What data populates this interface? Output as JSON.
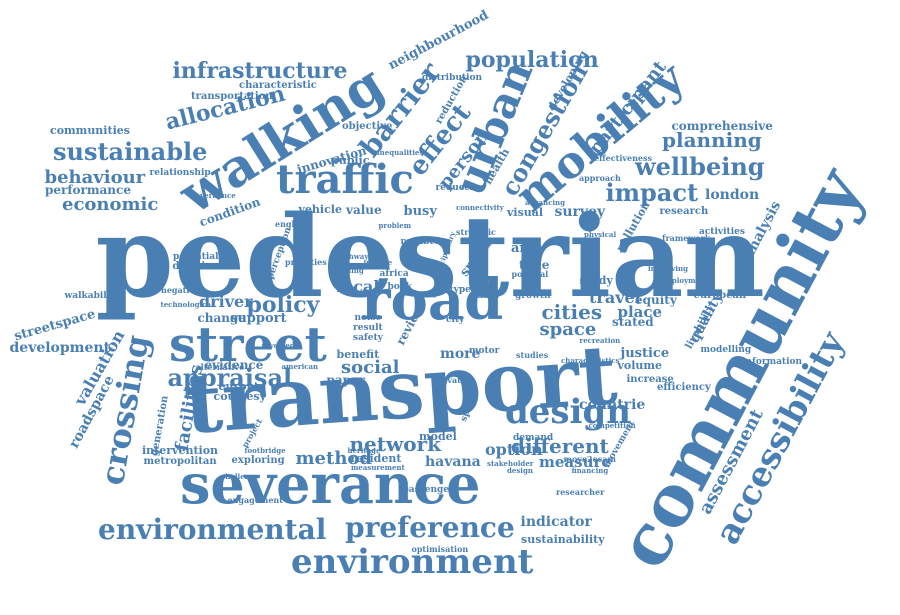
{
  "accent_color": "#4a7fb3",
  "words": [
    {
      "text": "pedestrian"
    },
    {
      "text": "community"
    },
    {
      "text": "transport"
    },
    {
      "text": "severance"
    },
    {
      "text": "road"
    },
    {
      "text": "walking"
    },
    {
      "text": "street"
    },
    {
      "text": "traffic"
    },
    {
      "text": "mobility"
    },
    {
      "text": "urban"
    },
    {
      "text": "accessibility"
    },
    {
      "text": "environment"
    },
    {
      "text": "environmental"
    },
    {
      "text": "preference"
    },
    {
      "text": "design"
    },
    {
      "text": "crossing"
    },
    {
      "text": "barrier"
    },
    {
      "text": "congestion"
    },
    {
      "text": "effect"
    },
    {
      "text": "infrastructure"
    },
    {
      "text": "population"
    },
    {
      "text": "sustainable"
    },
    {
      "text": "wellbeing"
    },
    {
      "text": "impact"
    },
    {
      "text": "planning"
    },
    {
      "text": "allocation"
    },
    {
      "text": "appraisal"
    },
    {
      "text": "network"
    },
    {
      "text": "policy"
    },
    {
      "text": "method"
    },
    {
      "text": "behaviour"
    },
    {
      "text": "economic"
    },
    {
      "text": "cities"
    },
    {
      "text": "space"
    },
    {
      "text": "different"
    },
    {
      "text": "assessment"
    },
    {
      "text": "social"
    },
    {
      "text": "facilities"
    },
    {
      "text": "valuation"
    },
    {
      "text": "roadspace"
    },
    {
      "text": "neighbourhood"
    },
    {
      "text": "participant"
    },
    {
      "text": "person"
    },
    {
      "text": "travel"
    },
    {
      "text": "quality"
    },
    {
      "text": "analysis"
    },
    {
      "text": "london"
    },
    {
      "text": "countrie"
    },
    {
      "text": "measure"
    },
    {
      "text": "option"
    },
    {
      "text": "havana"
    },
    {
      "text": "indicator"
    },
    {
      "text": "sustainability"
    },
    {
      "text": "comprehensive"
    },
    {
      "text": "development"
    },
    {
      "text": "streetspace"
    },
    {
      "text": "performance"
    },
    {
      "text": "communities"
    },
    {
      "text": "transportation"
    },
    {
      "text": "characteristic"
    },
    {
      "text": "survey"
    },
    {
      "text": "visual"
    },
    {
      "text": "pollution"
    },
    {
      "text": "research"
    },
    {
      "text": "place"
    },
    {
      "text": "stated"
    },
    {
      "text": "equity"
    },
    {
      "text": "justice"
    },
    {
      "text": "volume"
    },
    {
      "text": "increase"
    },
    {
      "text": "efficiency"
    },
    {
      "text": "livability"
    },
    {
      "text": "european"
    },
    {
      "text": "modelling"
    },
    {
      "text": "information"
    },
    {
      "text": "activities"
    },
    {
      "text": "framework"
    },
    {
      "text": "developing"
    },
    {
      "text": "health"
    },
    {
      "text": "reduction"
    },
    {
      "text": "distribution"
    },
    {
      "text": "innovation"
    },
    {
      "text": "objective"
    },
    {
      "text": "public"
    },
    {
      "text": "relationship"
    },
    {
      "text": "condition"
    },
    {
      "text": "vehicle"
    },
    {
      "text": "value"
    },
    {
      "text": "busy"
    },
    {
      "text": "local"
    },
    {
      "text": "driver"
    },
    {
      "text": "support"
    },
    {
      "text": "change"
    },
    {
      "text": "evidence"
    },
    {
      "text": "europe"
    },
    {
      "text": "courtesy"
    },
    {
      "text": "generation"
    },
    {
      "text": "intervention"
    },
    {
      "text": "metropolitan"
    },
    {
      "text": "exploring"
    },
    {
      "text": "resident"
    },
    {
      "text": "model"
    },
    {
      "text": "paper"
    },
    {
      "text": "more"
    },
    {
      "text": "benefit"
    },
    {
      "text": "time"
    },
    {
      "text": "area"
    },
    {
      "text": "speed"
    },
    {
      "text": "review"
    },
    {
      "text": "study"
    },
    {
      "text": "growth"
    },
    {
      "text": "demand"
    },
    {
      "text": "passenger"
    },
    {
      "text": "researcher"
    },
    {
      "text": "engagement"
    },
    {
      "text": "optimisation"
    },
    {
      "text": "walkability"
    },
    {
      "text": "decision"
    },
    {
      "text": "potential"
    },
    {
      "text": "negative"
    },
    {
      "text": "alternative"
    },
    {
      "text": "perception"
    },
    {
      "text": "priorities"
    },
    {
      "text": "movement"
    },
    {
      "text": "approach"
    },
    {
      "text": "effectiveness"
    },
    {
      "text": "reducer"
    },
    {
      "text": "strategic"
    },
    {
      "text": "africa"
    },
    {
      "text": "number"
    },
    {
      "text": "type"
    },
    {
      "text": "book"
    },
    {
      "text": "result"
    },
    {
      "text": "safety"
    },
    {
      "text": "noise"
    },
    {
      "text": "motor"
    },
    {
      "text": "studies"
    },
    {
      "text": "england"
    },
    {
      "text": "project"
    },
    {
      "text": "footbridge"
    },
    {
      "text": "measurement"
    },
    {
      "text": "stakeholder"
    },
    {
      "text": "spatial"
    },
    {
      "text": "private"
    },
    {
      "text": "move2ccam"
    },
    {
      "text": "financing"
    },
    {
      "text": "data"
    },
    {
      "text": "city"
    },
    {
      "text": "political"
    },
    {
      "text": "design"
    },
    {
      "text": "technological"
    },
    {
      "text": "american"
    },
    {
      "text": "revealed"
    },
    {
      "text": "income"
    },
    {
      "text": "finding"
    },
    {
      "text": "pathway"
    },
    {
      "text": "recreation"
    },
    {
      "text": "physical"
    },
    {
      "text": "governance"
    },
    {
      "text": "inequalities"
    },
    {
      "text": "advancing"
    },
    {
      "text": "problem"
    },
    {
      "text": "connectivity"
    },
    {
      "text": "disciplinary"
    },
    {
      "text": "challenge"
    },
    {
      "text": "employment"
    },
    {
      "text": "improving"
    },
    {
      "text": "competition"
    },
    {
      "text": "characteristics"
    },
    {
      "text": "heritage"
    }
  ]
}
